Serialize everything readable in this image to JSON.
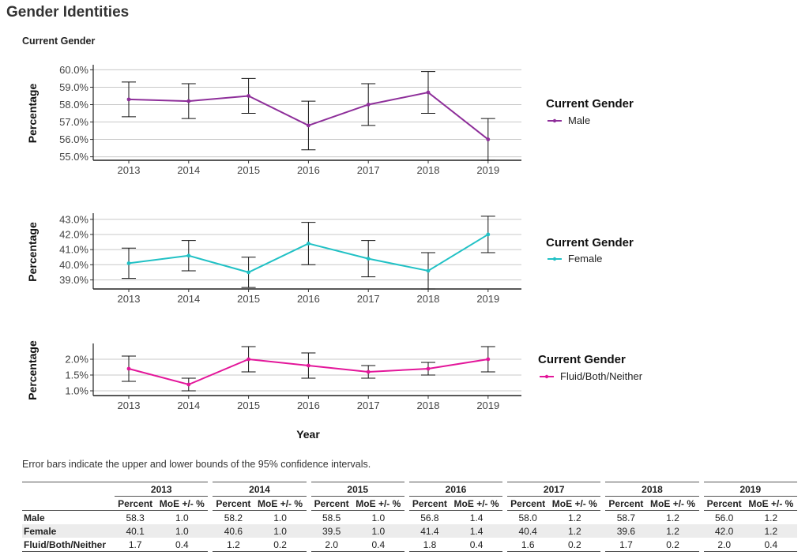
{
  "page": {
    "title": "Gender Identities",
    "subtitle": "Current Gender",
    "note": "Error bars indicate the upper and lower bounds of the 95% confidence intervals.",
    "xlabel": "Year"
  },
  "chart_data": [
    {
      "type": "line",
      "ylabel": "Percentage",
      "legend_title": "Current Gender",
      "legend_position": "right",
      "grid": true,
      "x": [
        "2013",
        "2014",
        "2015",
        "2016",
        "2017",
        "2018",
        "2019"
      ],
      "series": [
        {
          "name": "Male",
          "color": "#8e2f9a",
          "values": [
            58.3,
            58.2,
            58.5,
            56.8,
            58.0,
            58.7,
            56.0
          ],
          "moe": [
            1.0,
            1.0,
            1.0,
            1.4,
            1.2,
            1.2,
            1.2
          ]
        }
      ],
      "yticks": [
        "55.0%",
        "56.0%",
        "57.0%",
        "58.0%",
        "59.0%",
        "60.0%"
      ],
      "ylim": [
        54.8,
        60.2
      ]
    },
    {
      "type": "line",
      "ylabel": "Percentage",
      "legend_title": "Current Gender",
      "legend_position": "right",
      "grid": true,
      "x": [
        "2013",
        "2014",
        "2015",
        "2016",
        "2017",
        "2018",
        "2019"
      ],
      "series": [
        {
          "name": "Female",
          "color": "#21c1c5",
          "values": [
            40.1,
            40.6,
            39.5,
            41.4,
            40.4,
            39.6,
            42.0
          ],
          "moe": [
            1.0,
            1.0,
            1.0,
            1.4,
            1.2,
            1.2,
            1.2
          ]
        }
      ],
      "yticks": [
        "39.0%",
        "40.0%",
        "41.0%",
        "42.0%",
        "43.0%"
      ],
      "ylim": [
        38.4,
        43.3
      ]
    },
    {
      "type": "line",
      "ylabel": "Percentage",
      "legend_title": "Current Gender",
      "legend_position": "right",
      "grid": true,
      "x": [
        "2013",
        "2014",
        "2015",
        "2016",
        "2017",
        "2018",
        "2019"
      ],
      "series": [
        {
          "name": "Fluid/Both/Neither",
          "color": "#e3169a",
          "values": [
            1.7,
            1.2,
            2.0,
            1.8,
            1.6,
            1.7,
            2.0
          ],
          "moe": [
            0.4,
            0.2,
            0.4,
            0.4,
            0.2,
            0.2,
            0.4
          ]
        }
      ],
      "yticks": [
        "1.0%",
        "1.5%",
        "2.0%"
      ],
      "ylim": [
        0.85,
        2.45
      ]
    }
  ],
  "table": {
    "years": [
      "2013",
      "2014",
      "2015",
      "2016",
      "2017",
      "2018",
      "2019"
    ],
    "sub_headers": [
      "Percent",
      "MoE +/- %"
    ],
    "rows": [
      {
        "label": "Male",
        "cells": [
          "58.3",
          "1.0",
          "58.2",
          "1.0",
          "58.5",
          "1.0",
          "56.8",
          "1.4",
          "58.0",
          "1.2",
          "58.7",
          "1.2",
          "56.0",
          "1.2"
        ]
      },
      {
        "label": "Female",
        "cells": [
          "40.1",
          "1.0",
          "40.6",
          "1.0",
          "39.5",
          "1.0",
          "41.4",
          "1.4",
          "40.4",
          "1.2",
          "39.6",
          "1.2",
          "42.0",
          "1.2"
        ]
      },
      {
        "label": "Fluid/Both/Neither",
        "cells": [
          "1.7",
          "0.4",
          "1.2",
          "0.2",
          "2.0",
          "0.4",
          "1.8",
          "0.4",
          "1.6",
          "0.2",
          "1.7",
          "0.2",
          "2.0",
          "0.4"
        ]
      }
    ]
  }
}
